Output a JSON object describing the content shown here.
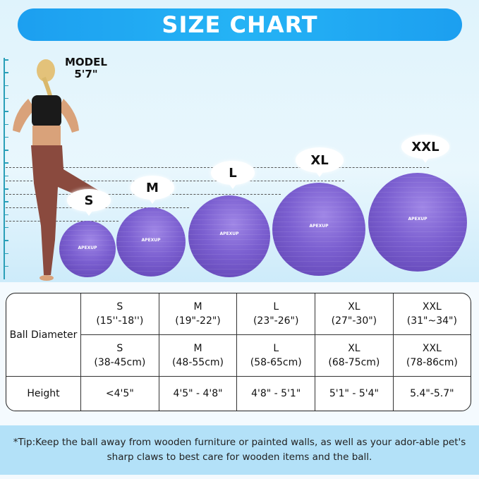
{
  "title": "SIZE CHART",
  "model": {
    "label": "MODEL",
    "height": "5'7\""
  },
  "brand": "APEXUP",
  "colors": {
    "banner": "#1c9ff0",
    "ball": "#7b5fd0",
    "tip_bg": "#b3e1f8"
  },
  "balls": [
    {
      "size": "S"
    },
    {
      "size": "M"
    },
    {
      "size": "L"
    },
    {
      "size": "XL"
    },
    {
      "size": "XXL"
    }
  ],
  "table": {
    "row_headers": {
      "diameter": "Ball Diameter",
      "height": "Height"
    },
    "inches": [
      {
        "size": "S",
        "range": "(15''-18'')"
      },
      {
        "size": "M",
        "range": "(19\"-22\")"
      },
      {
        "size": "L",
        "range": "(23\"-26\")"
      },
      {
        "size": "XL",
        "range": "(27\"-30\")"
      },
      {
        "size": "XXL",
        "range": "(31\"~34\")"
      }
    ],
    "cm": [
      {
        "size": "S",
        "range": "(38-45cm)"
      },
      {
        "size": "M",
        "range": "(48-55cm)"
      },
      {
        "size": "L",
        "range": "(58-65cm)"
      },
      {
        "size": "XL",
        "range": "(68-75cm)"
      },
      {
        "size": "XXL",
        "range": "(78-86cm)"
      }
    ],
    "heights": [
      "<4'5\"",
      "4'5\" - 4'8\"",
      "4'8\" - 5'1\"",
      "5'1\" - 5'4\"",
      "5.4\"-5.7\""
    ]
  },
  "tip": "*Tip:Keep the ball away from wooden furniture or painted walls, as well as your ador-able pet's sharp claws to best care for wooden items and the ball."
}
